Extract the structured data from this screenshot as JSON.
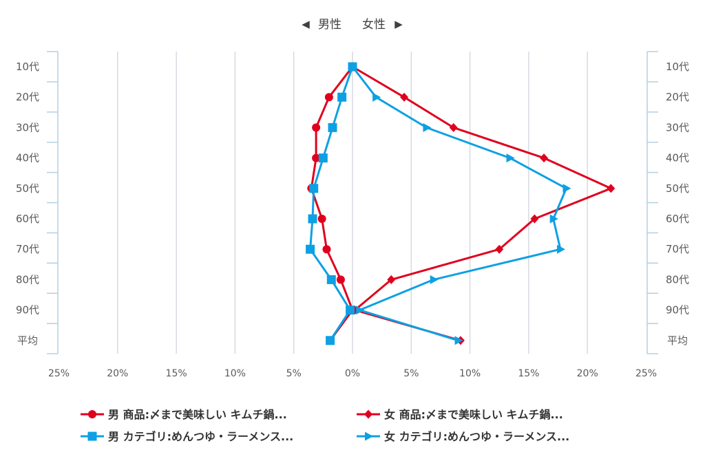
{
  "header": {
    "left_label": "男性",
    "right_label": "女性",
    "left_arrow": "◀",
    "right_arrow": "▶"
  },
  "chart_data": {
    "type": "line",
    "orientation": "horizontal-pyramid",
    "categories": [
      "10代",
      "20代",
      "30代",
      "40代",
      "50代",
      "60代",
      "70代",
      "80代",
      "90代",
      "平均"
    ],
    "x_ticks": [
      "25%",
      "20%",
      "15%",
      "10%",
      "5%",
      "0%",
      "5%",
      "10%",
      "15%",
      "20%",
      "25%"
    ],
    "xlim": [
      -25,
      25
    ],
    "grid": true,
    "legend_position": "bottom",
    "series": [
      {
        "name": "男 商品:〆まで美味しい キムチ鍋...",
        "color": "#e0001e",
        "marker": "circle",
        "values": [
          0,
          -2.0,
          -3.1,
          -3.1,
          -3.5,
          -2.6,
          -2.2,
          -1.0,
          0,
          -1.9
        ]
      },
      {
        "name": "女 商品:〆まで美味しい キムチ鍋...",
        "color": "#e0001e",
        "marker": "diamond",
        "values": [
          0,
          4.4,
          8.6,
          16.3,
          22.0,
          15.5,
          12.5,
          3.3,
          0.2,
          9.2
        ]
      },
      {
        "name": "男 カテゴリ:めんつゆ・ラーメンス...",
        "color": "#0da0e3",
        "marker": "square",
        "values": [
          0,
          -0.9,
          -1.7,
          -2.5,
          -3.3,
          -3.4,
          -3.6,
          -1.8,
          -0.2,
          -1.9
        ]
      },
      {
        "name": "女 カテゴリ:めんつゆ・ラーメンス...",
        "color": "#0da0e3",
        "marker": "triangle",
        "values": [
          0,
          2.0,
          6.3,
          13.4,
          18.2,
          17.1,
          17.7,
          6.9,
          0.6,
          9.0
        ]
      }
    ]
  }
}
